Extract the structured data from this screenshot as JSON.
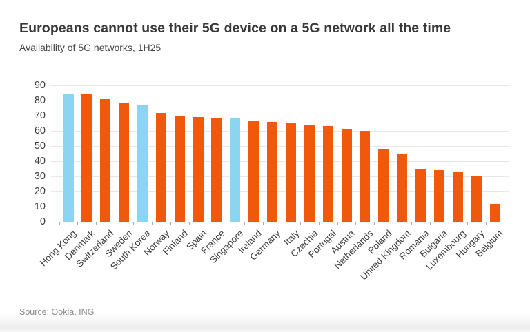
{
  "chart_data": {
    "type": "bar",
    "title": "Europeans cannot use their 5G device on a 5G network all the time",
    "subtitle": "Availability of 5G networks, 1H25",
    "source_note": "Source: Ookla, ING",
    "categories": [
      "Hong Kong",
      "Denmark",
      "Switzerland",
      "Sweden",
      "South Korea",
      "Norway",
      "Finland",
      "Spain",
      "France",
      "Singapore",
      "Ireland",
      "Germany",
      "Italy",
      "Czechia",
      "Portugal",
      "Austria",
      "Netherlands",
      "Poland",
      "United Kingdom",
      "Romania",
      "Bulgaria",
      "Luxembourg",
      "Hungary",
      "Belgium"
    ],
    "values": [
      84,
      84,
      81,
      78,
      77,
      72,
      70,
      69,
      68,
      68,
      67,
      66,
      65,
      64,
      63,
      61,
      60,
      48,
      45,
      35,
      34,
      33,
      30,
      12
    ],
    "highlighted_non_european": [
      "Hong Kong",
      "South Korea",
      "Singapore"
    ],
    "ylim": [
      0,
      90
    ],
    "yticks": [
      0,
      10,
      20,
      30,
      40,
      50,
      60,
      70,
      80,
      90
    ],
    "grid": "horizontal",
    "legend": "none",
    "xlabel": "",
    "ylabel": "",
    "colors": {
      "european_bar": "#f0590c",
      "non_european_bar": "#8bd4f2",
      "gridline": "#e7e7e7",
      "axis": "#a7acb1",
      "text": "#3c3c3c",
      "muted_text": "#8c8c8c"
    }
  }
}
